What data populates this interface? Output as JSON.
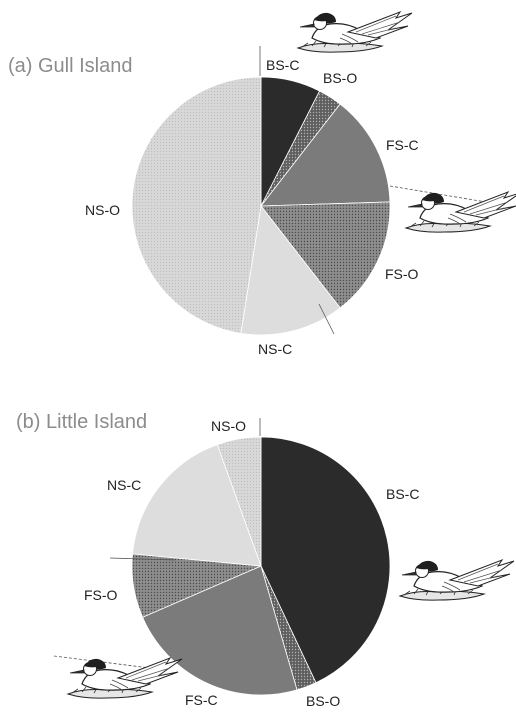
{
  "chart_data": [
    {
      "type": "pie",
      "title": "(a) Gull Island",
      "start_angle_deg": 0,
      "direction": "clockwise",
      "slices": [
        {
          "label": "BS-C",
          "value": 7.5,
          "color": "#2b2b2b",
          "texture": "none"
        },
        {
          "label": "BS-O",
          "value": 3.0,
          "color": "#5e5e5e",
          "texture": "dots"
        },
        {
          "label": "FS-C",
          "value": 14.0,
          "color": "#7b7b7b",
          "texture": "none"
        },
        {
          "label": "FS-O",
          "value": 15.0,
          "color": "#8e8e8e",
          "texture": "dots"
        },
        {
          "label": "NS-C",
          "value": 13.0,
          "color": "#dddddd",
          "texture": "none"
        },
        {
          "label": "NS-O",
          "value": 47.5,
          "color": "#d5d5d5",
          "texture": "dots"
        }
      ]
    },
    {
      "type": "pie",
      "title": "(b) Little Island",
      "start_angle_deg": 0,
      "direction": "clockwise",
      "slices": [
        {
          "label": "BS-C",
          "value": 43.0,
          "color": "#2b2b2b",
          "texture": "none"
        },
        {
          "label": "BS-O",
          "value": 2.5,
          "color": "#5e5e5e",
          "texture": "dots"
        },
        {
          "label": "FS-C",
          "value": 23.0,
          "color": "#7b7b7b",
          "texture": "none"
        },
        {
          "label": "FS-O",
          "value": 8.0,
          "color": "#8e8e8e",
          "texture": "dots"
        },
        {
          "label": "NS-C",
          "value": 18.0,
          "color": "#dddddd",
          "texture": "none"
        },
        {
          "label": "NS-O",
          "value": 5.5,
          "color": "#d5d5d5",
          "texture": "dots"
        }
      ]
    }
  ],
  "illustrations": [
    {
      "icon": "tern-on-nest-icon"
    },
    {
      "icon": "tern-on-nest-icon"
    },
    {
      "icon": "tern-on-nest-icon"
    },
    {
      "icon": "tern-on-nest-icon"
    }
  ]
}
